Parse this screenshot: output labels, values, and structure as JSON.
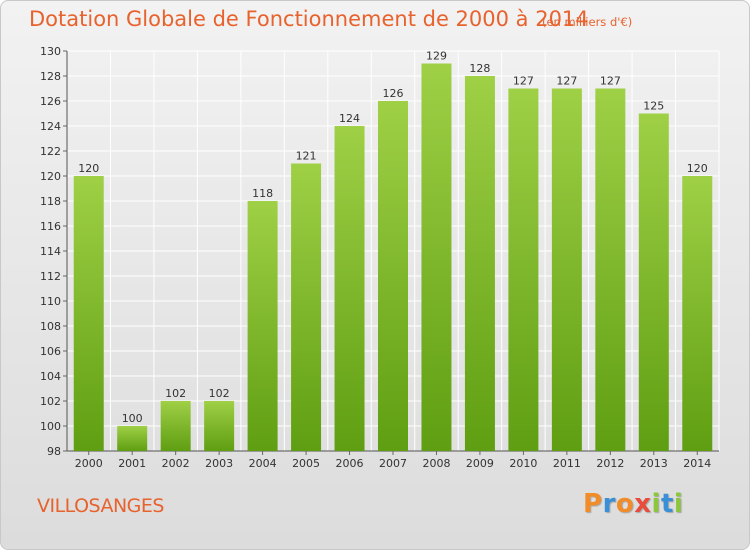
{
  "header": {
    "title": "Dotation Globale de Fonctionnement de 2000 à 2014",
    "subtitle": "(en milliers d'€)"
  },
  "footer": {
    "commune": "VILLOSANGES",
    "brand": "Proxiti",
    "brand_colors": [
      "#f28c28",
      "#3b8fd6",
      "#f28c28",
      "#e84c3d",
      "#8cc63f",
      "#3b8fd6",
      "#8cc63f"
    ]
  },
  "colors": {
    "title": "#e8622d",
    "bar_top": "#9fd046",
    "bar_bottom": "#5f9e12",
    "grid": "#ffffff",
    "axis_text": "#333333"
  },
  "chart_data": {
    "type": "bar",
    "title": "Dotation Globale de Fonctionnement de 2000 à 2014",
    "subtitle": "(en milliers d'€)",
    "categories": [
      "2000",
      "2001",
      "2002",
      "2003",
      "2004",
      "2005",
      "2006",
      "2007",
      "2008",
      "2009",
      "2010",
      "2011",
      "2012",
      "2013",
      "2014"
    ],
    "values": [
      120,
      100,
      102,
      102,
      118,
      121,
      124,
      126,
      129,
      128,
      127,
      127,
      127,
      125,
      120
    ],
    "ylim": [
      98,
      130
    ],
    "yticks": [
      98,
      100,
      102,
      104,
      106,
      108,
      110,
      112,
      114,
      116,
      118,
      120,
      122,
      124,
      126,
      128,
      130
    ],
    "grid": true,
    "legend": "none",
    "xlabel": "",
    "ylabel": ""
  }
}
